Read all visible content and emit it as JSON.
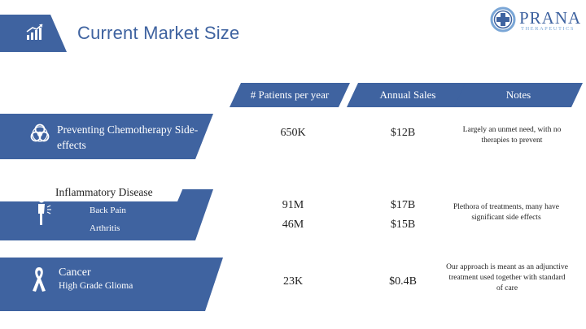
{
  "header": {
    "title": "Current Market Size",
    "logo": {
      "name": "PRANA",
      "subtitle": "THERAPEUTICS"
    }
  },
  "columns": {
    "patients": "# Patients per year",
    "sales": "Annual Sales",
    "notes": "Notes"
  },
  "rows": {
    "chemo": {
      "label": "Preventing Chemotherapy Side-effects",
      "patients": "650K",
      "sales": "$12B",
      "note": "Largely an unmet need, with no therapies to prevent"
    },
    "inflammatory": {
      "heading": "Inflammatory Disease",
      "back_pain": {
        "label": "Back Pain",
        "patients": "91M",
        "sales": "$17B"
      },
      "arthritis": {
        "label": "Arthritis",
        "patients": "46M",
        "sales": "$15B"
      },
      "note": "Plethora of treatments, many have significant side effects"
    },
    "cancer": {
      "label": "Cancer",
      "sublabel": "High Grade Glioma",
      "patients": "23K",
      "sales": "$0.4B",
      "note": "Our approach is meant as an adjunctive treatment used together with standard of care"
    }
  },
  "icons": {
    "header": "bar-chart-icon",
    "chemo": "biohazard-icon",
    "inflammatory": "back-pain-person-icon",
    "cancer": "awareness-ribbon-icon"
  },
  "colors": {
    "accent": "#3f63a0",
    "logo_light": "#7aa6d6"
  }
}
